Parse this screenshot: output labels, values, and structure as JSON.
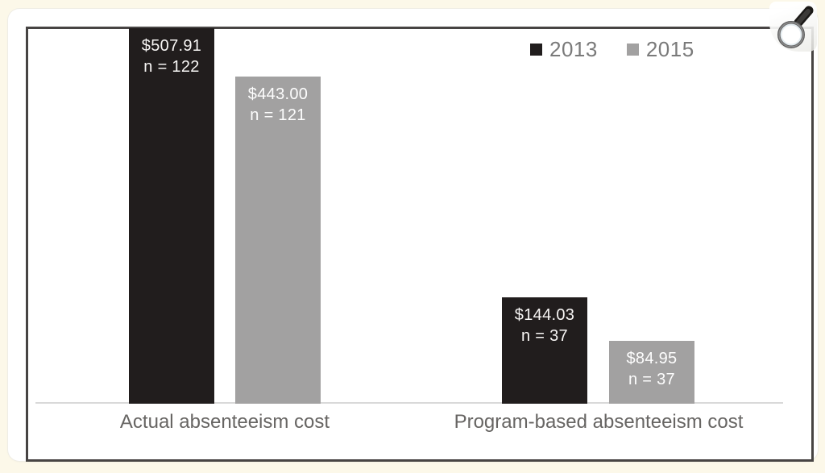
{
  "chart_data": {
    "type": "bar",
    "title": "",
    "xlabel": "",
    "ylabel": "",
    "ylim": [
      0,
      520
    ],
    "grid": false,
    "legend_position": "top-right",
    "categories": [
      "Actual absenteeism cost",
      "Program-based absenteeism cost"
    ],
    "series": [
      {
        "name": "2013",
        "color": "#211d1d",
        "values": [
          507.91,
          144.03
        ],
        "sample_sizes": [
          122,
          37
        ]
      },
      {
        "name": "2015",
        "color": "#a2a1a1",
        "values": [
          443.0,
          84.95
        ],
        "sample_sizes": [
          121,
          37
        ]
      }
    ],
    "bars": [
      {
        "series": "2013",
        "category": "Actual absenteeism cost",
        "value": 507.91,
        "value_label": "$507.91",
        "n_label": "n = 122"
      },
      {
        "series": "2015",
        "category": "Actual absenteeism cost",
        "value": 443.0,
        "value_label": "$443.00",
        "n_label": "n = 121"
      },
      {
        "series": "2013",
        "category": "Program-based absenteeism cost",
        "value": 144.03,
        "value_label": "$144.03",
        "n_label": "n = 37"
      },
      {
        "series": "2015",
        "category": "Program-based absenteeism cost",
        "value": 84.95,
        "value_label": "$84.95",
        "n_label": "n = 37"
      }
    ],
    "colors": {
      "axis_line": "#d9d9d9",
      "bar_label_text": "#f8f6f5",
      "category_text": "#676563",
      "legend_text": "#7a7a7a",
      "frame_border": "#474443",
      "page_background": "#fcf8e9",
      "card_background": "#ffffff"
    }
  },
  "icons": {
    "magnifier": "magnifying-glass-zoom"
  }
}
